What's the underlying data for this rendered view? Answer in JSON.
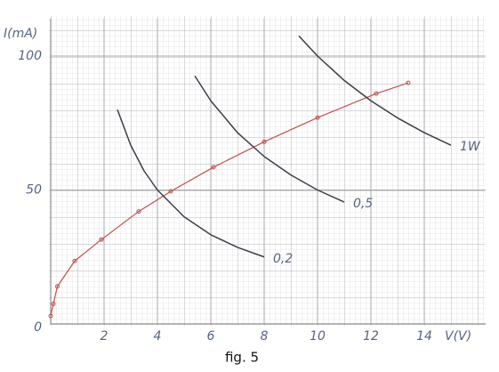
{
  "chart_data": {
    "type": "line",
    "title": "fig. 5",
    "y_label": "I(mA)",
    "x_label": "V(V)",
    "xlim": [
      0,
      16.3
    ],
    "ylim": [
      0,
      114
    ],
    "xticks": [
      2,
      4,
      6,
      8,
      10,
      12,
      14
    ],
    "yticks": [
      0,
      50,
      100
    ],
    "grid": true,
    "series": [
      {
        "color": "#c0504d",
        "markers": true,
        "x": [
          0,
          0.1,
          0.25,
          0.9,
          1.9,
          3.3,
          4.5,
          6.1,
          8,
          10,
          12.2,
          13.4
        ],
        "values": [
          3,
          7.5,
          14,
          23.5,
          31.5,
          42,
          49.5,
          58.5,
          68,
          77,
          86,
          90
        ]
      },
      {
        "name": "0,2",
        "color": "#3a3f4a",
        "markers": false,
        "x": [
          2.5,
          3,
          3.5,
          4,
          5,
          6,
          7,
          8
        ],
        "values": [
          80,
          66.7,
          57.1,
          50,
          40,
          33.3,
          28.6,
          25
        ]
      },
      {
        "name": "0,5",
        "color": "#3a3f4a",
        "markers": false,
        "x": [
          5.4,
          6,
          7,
          8,
          9,
          10,
          11
        ],
        "values": [
          92.6,
          83.3,
          71.4,
          62.5,
          55.6,
          50,
          45.5
        ]
      },
      {
        "name": "1W",
        "color": "#3a3f4a",
        "markers": false,
        "x": [
          9.3,
          10,
          11,
          12,
          13,
          14,
          15
        ],
        "values": [
          107.5,
          100,
          90.9,
          83.3,
          76.9,
          71.4,
          66.7
        ]
      }
    ]
  }
}
